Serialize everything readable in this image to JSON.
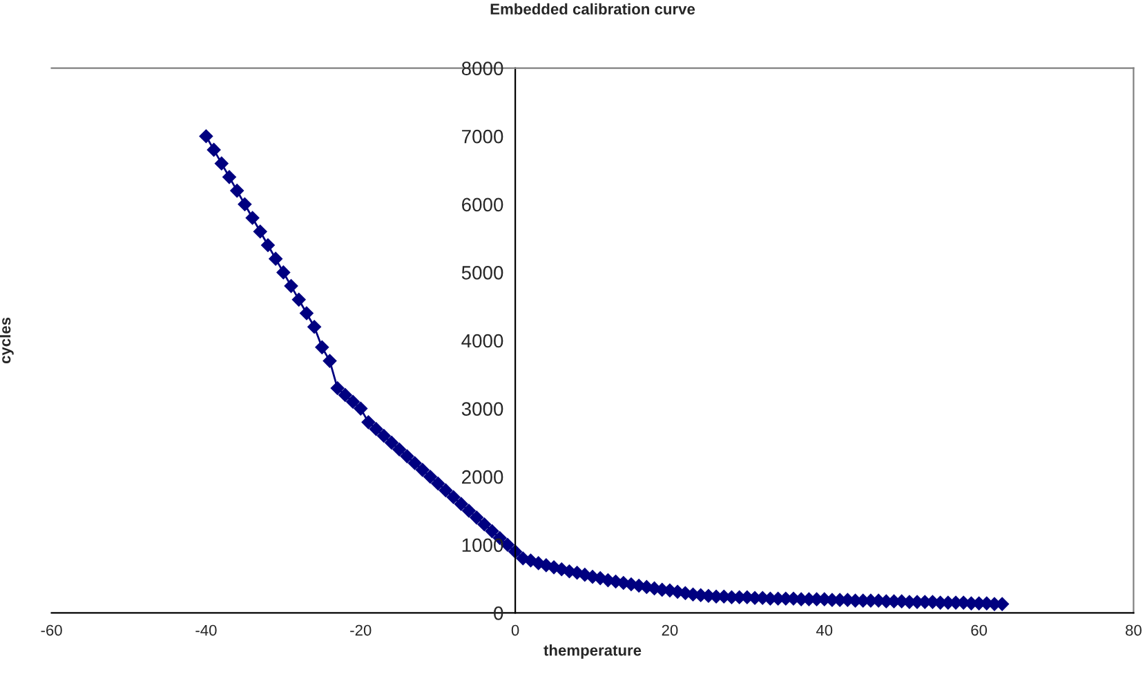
{
  "chart_data": {
    "type": "line",
    "title": "Embedded calibration curve",
    "xlabel": "themperature",
    "ylabel": "cycles",
    "x": [
      -40,
      -39,
      -38,
      -37,
      -36,
      -35,
      -34,
      -33,
      -32,
      -31,
      -30,
      -29,
      -28,
      -27,
      -26,
      -25,
      -24,
      -23,
      -22,
      -21,
      -20,
      -19,
      -18,
      -17,
      -16,
      -15,
      -14,
      -13,
      -12,
      -11,
      -10,
      -9,
      -8,
      -7,
      -6,
      -5,
      -4,
      -3,
      -2,
      -1,
      0,
      1,
      2,
      3,
      4,
      5,
      6,
      7,
      8,
      9,
      10,
      11,
      12,
      13,
      14,
      15,
      16,
      17,
      18,
      19,
      20,
      21,
      22,
      23,
      24,
      25,
      26,
      27,
      28,
      29,
      30,
      31,
      32,
      33,
      34,
      35,
      36,
      37,
      38,
      39,
      40,
      41,
      42,
      43,
      44,
      45,
      46,
      47,
      48,
      49,
      50,
      51,
      52,
      53,
      54,
      55,
      56,
      57,
      58,
      59,
      60,
      61,
      62,
      63
    ],
    "series": [
      {
        "color": "#000080",
        "values": [
          7000,
          6800,
          6600,
          6400,
          6200,
          6000,
          5800,
          5600,
          5400,
          5200,
          5000,
          4800,
          4600,
          4400,
          4200,
          3900,
          3700,
          3300,
          3200,
          3100,
          3000,
          2800,
          2700,
          2600,
          2500,
          2400,
          2300,
          2200,
          2100,
          2000,
          1900,
          1800,
          1700,
          1600,
          1500,
          1400,
          1300,
          1200,
          1100,
          1000,
          900,
          800,
          770,
          730,
          700,
          670,
          640,
          610,
          590,
          560,
          530,
          510,
          480,
          460,
          440,
          420,
          400,
          380,
          360,
          340,
          330,
          310,
          290,
          270,
          260,
          250,
          240,
          240,
          230,
          230,
          230,
          220,
          220,
          210,
          210,
          210,
          210,
          200,
          200,
          200,
          200,
          190,
          190,
          190,
          180,
          180,
          180,
          180,
          170,
          170,
          170,
          160,
          160,
          160,
          160,
          150,
          150,
          150,
          150,
          140,
          140,
          140,
          130,
          130
        ]
      }
    ],
    "xlim": [
      -60,
      80
    ],
    "xticks": [
      -60,
      -40,
      -20,
      0,
      20,
      40,
      60,
      80
    ],
    "ylim": [
      0,
      8000
    ],
    "yticks": [
      0,
      1000,
      2000,
      3000,
      4000,
      5000,
      6000,
      7000,
      8000
    ],
    "marker": "diamond",
    "line_style": "solid",
    "grid": false
  }
}
